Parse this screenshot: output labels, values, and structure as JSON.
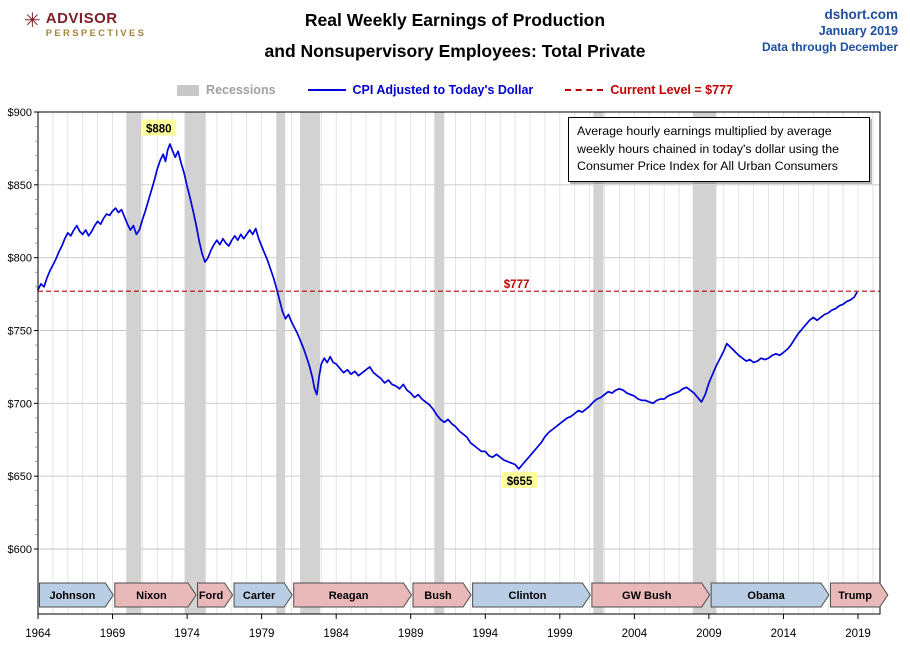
{
  "header": {
    "brand_top": "ADVISOR",
    "brand_bottom": "PERSPECTIVES",
    "title_line1": "Real Weekly Earnings of Production",
    "title_line2": "and Nonsupervisory Employees: Total Private",
    "source_site": "dshort.com",
    "source_date": "January 2019",
    "source_note": "Data through December"
  },
  "legend": {
    "recessions_label": "Recessions",
    "series_label": "CPI Adjusted to Today's Dollar",
    "current_label": "Current Level = $777"
  },
  "colors": {
    "line": "#0000dd",
    "current_level": "#c00000",
    "recession": "#d2d2d2",
    "dem": "#b9cde4",
    "rep": "#e9b9b9",
    "highlight_bg": "#ffff9e",
    "grid_major": "#c6c6c6",
    "grid_minor": "#dedede",
    "accent_blue": "#1c4e9e",
    "brand_red": "#7b2127",
    "brand_gold": "#a8833d"
  },
  "chart_data": {
    "type": "line",
    "title": "Real Weekly Earnings of Production and Nonsupervisory Employees: Total Private",
    "xlabel": "",
    "ylabel": "",
    "xlim": [
      1964,
      2020.5
    ],
    "ylim": [
      600,
      900
    ],
    "grid": true,
    "legend_position": "top",
    "x_ticks": [
      1964,
      1969,
      1974,
      1979,
      1984,
      1989,
      1994,
      1999,
      2004,
      2009,
      2014,
      2019
    ],
    "y_ticks": [
      600,
      650,
      700,
      750,
      800,
      850,
      900
    ],
    "y_tick_labels": [
      "$600",
      "$650",
      "$700",
      "$750",
      "$800",
      "$850",
      "$900"
    ],
    "current_level": 777,
    "note": "Average hourly earnings multiplied by average weekly hours chained in today's dollar using the Consumer Price Index for All Urban Consumers",
    "annotations": [
      {
        "text": "$880",
        "x": 1972.1,
        "y": 889,
        "style": "highlight"
      },
      {
        "text": "$655",
        "x": 1996.3,
        "y": 647,
        "style": "highlight"
      },
      {
        "text": "$777",
        "x": 1996.1,
        "y": 782,
        "style": "current"
      }
    ],
    "recessions": [
      [
        1969.92,
        1970.92
      ],
      [
        1973.83,
        1975.25
      ],
      [
        1980.0,
        1980.58
      ],
      [
        1981.58,
        1982.92
      ],
      [
        1990.58,
        1991.25
      ],
      [
        2001.25,
        2001.92
      ],
      [
        2007.92,
        2009.5
      ]
    ],
    "presidents": [
      {
        "name": "Johnson",
        "start": 1964.0,
        "end": 1969.05,
        "party": "D"
      },
      {
        "name": "Nixon",
        "start": 1969.05,
        "end": 1974.6,
        "party": "R"
      },
      {
        "name": "Ford",
        "start": 1974.6,
        "end": 1977.05,
        "party": "R"
      },
      {
        "name": "Carter",
        "start": 1977.05,
        "end": 1981.05,
        "party": "D"
      },
      {
        "name": "Reagan",
        "start": 1981.05,
        "end": 1989.05,
        "party": "R"
      },
      {
        "name": "Bush",
        "start": 1989.05,
        "end": 1993.05,
        "party": "R"
      },
      {
        "name": "Clinton",
        "start": 1993.05,
        "end": 2001.05,
        "party": "D"
      },
      {
        "name": "GW Bush",
        "start": 2001.05,
        "end": 2009.05,
        "party": "R"
      },
      {
        "name": "Obama",
        "start": 2009.05,
        "end": 2017.05,
        "party": "D"
      },
      {
        "name": "Trump",
        "start": 2017.05,
        "end": 2021.0,
        "party": "R"
      }
    ],
    "series": {
      "name": "CPI Adjusted to Today's Dollar",
      "points": [
        [
          1964,
          778
        ],
        [
          1964.2,
          782
        ],
        [
          1964.4,
          780
        ],
        [
          1964.6,
          786
        ],
        [
          1964.8,
          791
        ],
        [
          1965,
          795
        ],
        [
          1965.2,
          799
        ],
        [
          1965.4,
          804
        ],
        [
          1965.6,
          808
        ],
        [
          1965.8,
          813
        ],
        [
          1966,
          817
        ],
        [
          1966.2,
          815
        ],
        [
          1966.4,
          819
        ],
        [
          1966.6,
          822
        ],
        [
          1966.8,
          818
        ],
        [
          1967,
          816
        ],
        [
          1967.2,
          819
        ],
        [
          1967.4,
          815
        ],
        [
          1967.6,
          818
        ],
        [
          1967.8,
          822
        ],
        [
          1968,
          825
        ],
        [
          1968.2,
          823
        ],
        [
          1968.4,
          827
        ],
        [
          1968.6,
          830
        ],
        [
          1968.8,
          829
        ],
        [
          1969,
          832
        ],
        [
          1969.2,
          834
        ],
        [
          1969.4,
          831
        ],
        [
          1969.6,
          833
        ],
        [
          1969.8,
          828
        ],
        [
          1970,
          823
        ],
        [
          1970.2,
          819
        ],
        [
          1970.4,
          822
        ],
        [
          1970.6,
          816
        ],
        [
          1970.8,
          819
        ],
        [
          1971,
          826
        ],
        [
          1971.2,
          832
        ],
        [
          1971.4,
          839
        ],
        [
          1971.6,
          846
        ],
        [
          1971.8,
          853
        ],
        [
          1972,
          861
        ],
        [
          1972.2,
          867
        ],
        [
          1972.4,
          871
        ],
        [
          1972.55,
          866
        ],
        [
          1972.7,
          874
        ],
        [
          1972.85,
          878
        ],
        [
          1973,
          874
        ],
        [
          1973.2,
          869
        ],
        [
          1973.4,
          873
        ],
        [
          1973.6,
          865
        ],
        [
          1973.8,
          858
        ],
        [
          1974,
          849
        ],
        [
          1974.2,
          841
        ],
        [
          1974.4,
          832
        ],
        [
          1974.6,
          823
        ],
        [
          1974.8,
          812
        ],
        [
          1975,
          803
        ],
        [
          1975.2,
          797
        ],
        [
          1975.4,
          800
        ],
        [
          1975.6,
          805
        ],
        [
          1975.8,
          809
        ],
        [
          1976,
          812
        ],
        [
          1976.2,
          809
        ],
        [
          1976.4,
          813
        ],
        [
          1976.6,
          810
        ],
        [
          1976.8,
          808
        ],
        [
          1977,
          812
        ],
        [
          1977.2,
          815
        ],
        [
          1977.4,
          812
        ],
        [
          1977.6,
          816
        ],
        [
          1977.8,
          813
        ],
        [
          1978,
          816
        ],
        [
          1978.2,
          819
        ],
        [
          1978.4,
          816
        ],
        [
          1978.6,
          820
        ],
        [
          1978.8,
          813
        ],
        [
          1979,
          808
        ],
        [
          1979.2,
          803
        ],
        [
          1979.4,
          798
        ],
        [
          1979.6,
          792
        ],
        [
          1979.8,
          786
        ],
        [
          1980,
          779
        ],
        [
          1980.2,
          771
        ],
        [
          1980.4,
          763
        ],
        [
          1980.6,
          758
        ],
        [
          1980.8,
          761
        ],
        [
          1981,
          756
        ],
        [
          1981.2,
          752
        ],
        [
          1981.4,
          748
        ],
        [
          1981.6,
          743
        ],
        [
          1981.8,
          738
        ],
        [
          1982,
          732
        ],
        [
          1982.2,
          726
        ],
        [
          1982.4,
          718
        ],
        [
          1982.55,
          710
        ],
        [
          1982.7,
          706
        ],
        [
          1982.85,
          718
        ],
        [
          1983,
          727
        ],
        [
          1983.2,
          731
        ],
        [
          1983.4,
          728
        ],
        [
          1983.6,
          732
        ],
        [
          1983.8,
          728
        ],
        [
          1984,
          727
        ],
        [
          1984.25,
          724
        ],
        [
          1984.5,
          721
        ],
        [
          1984.75,
          723
        ],
        [
          1985,
          720
        ],
        [
          1985.25,
          722
        ],
        [
          1985.5,
          719
        ],
        [
          1985.75,
          721
        ],
        [
          1986,
          723
        ],
        [
          1986.25,
          725
        ],
        [
          1986.5,
          721
        ],
        [
          1986.75,
          719
        ],
        [
          1987,
          717
        ],
        [
          1987.25,
          714
        ],
        [
          1987.5,
          716
        ],
        [
          1987.75,
          713
        ],
        [
          1988,
          712
        ],
        [
          1988.25,
          710
        ],
        [
          1988.5,
          713
        ],
        [
          1988.75,
          709
        ],
        [
          1989,
          707
        ],
        [
          1989.25,
          704
        ],
        [
          1989.5,
          706
        ],
        [
          1989.75,
          703
        ],
        [
          1990,
          701
        ],
        [
          1990.25,
          699
        ],
        [
          1990.5,
          696
        ],
        [
          1990.75,
          692
        ],
        [
          1991,
          689
        ],
        [
          1991.25,
          687
        ],
        [
          1991.5,
          689
        ],
        [
          1991.75,
          686
        ],
        [
          1992,
          684
        ],
        [
          1992.25,
          681
        ],
        [
          1992.5,
          679
        ],
        [
          1992.75,
          677
        ],
        [
          1993,
          673
        ],
        [
          1993.25,
          671
        ],
        [
          1993.5,
          669
        ],
        [
          1993.75,
          667
        ],
        [
          1994,
          667
        ],
        [
          1994.25,
          664
        ],
        [
          1994.5,
          663
        ],
        [
          1994.75,
          665
        ],
        [
          1995,
          663
        ],
        [
          1995.25,
          661
        ],
        [
          1995.5,
          660
        ],
        [
          1995.75,
          659
        ],
        [
          1996,
          658
        ],
        [
          1996.25,
          655
        ],
        [
          1996.5,
          658
        ],
        [
          1996.75,
          661
        ],
        [
          1997,
          664
        ],
        [
          1997.25,
          667
        ],
        [
          1997.5,
          670
        ],
        [
          1997.75,
          673
        ],
        [
          1998,
          677
        ],
        [
          1998.25,
          680
        ],
        [
          1998.5,
          682
        ],
        [
          1998.75,
          684
        ],
        [
          1999,
          686
        ],
        [
          1999.25,
          688
        ],
        [
          1999.5,
          690
        ],
        [
          1999.75,
          691
        ],
        [
          2000,
          693
        ],
        [
          2000.25,
          695
        ],
        [
          2000.5,
          694
        ],
        [
          2000.75,
          696
        ],
        [
          2001,
          698
        ],
        [
          2001.25,
          701
        ],
        [
          2001.5,
          703
        ],
        [
          2001.75,
          704
        ],
        [
          2002,
          706
        ],
        [
          2002.25,
          708
        ],
        [
          2002.5,
          707
        ],
        [
          2002.75,
          709
        ],
        [
          2003,
          710
        ],
        [
          2003.25,
          709
        ],
        [
          2003.5,
          707
        ],
        [
          2003.75,
          706
        ],
        [
          2004,
          705
        ],
        [
          2004.25,
          703
        ],
        [
          2004.5,
          702
        ],
        [
          2004.75,
          702
        ],
        [
          2005,
          701
        ],
        [
          2005.25,
          700
        ],
        [
          2005.5,
          702
        ],
        [
          2005.75,
          703
        ],
        [
          2006,
          703
        ],
        [
          2006.25,
          705
        ],
        [
          2006.5,
          706
        ],
        [
          2006.75,
          707
        ],
        [
          2007,
          708
        ],
        [
          2007.25,
          710
        ],
        [
          2007.5,
          711
        ],
        [
          2007.75,
          709
        ],
        [
          2008,
          707
        ],
        [
          2008.25,
          704
        ],
        [
          2008.5,
          701
        ],
        [
          2008.75,
          706
        ],
        [
          2009,
          714
        ],
        [
          2009.25,
          720
        ],
        [
          2009.5,
          726
        ],
        [
          2009.75,
          731
        ],
        [
          2010,
          736
        ],
        [
          2010.2,
          741
        ],
        [
          2010.4,
          739
        ],
        [
          2010.6,
          737
        ],
        [
          2010.8,
          735
        ],
        [
          2011,
          733
        ],
        [
          2011.25,
          731
        ],
        [
          2011.5,
          729
        ],
        [
          2011.75,
          730
        ],
        [
          2012,
          728
        ],
        [
          2012.25,
          729
        ],
        [
          2012.5,
          731
        ],
        [
          2012.75,
          730
        ],
        [
          2013,
          731
        ],
        [
          2013.25,
          733
        ],
        [
          2013.5,
          734
        ],
        [
          2013.75,
          733
        ],
        [
          2014,
          735
        ],
        [
          2014.25,
          737
        ],
        [
          2014.5,
          740
        ],
        [
          2014.75,
          744
        ],
        [
          2015,
          748
        ],
        [
          2015.25,
          751
        ],
        [
          2015.5,
          754
        ],
        [
          2015.75,
          757
        ],
        [
          2016,
          759
        ],
        [
          2016.25,
          757
        ],
        [
          2016.5,
          759
        ],
        [
          2016.75,
          761
        ],
        [
          2017,
          762
        ],
        [
          2017.25,
          764
        ],
        [
          2017.5,
          765
        ],
        [
          2017.75,
          767
        ],
        [
          2018,
          768
        ],
        [
          2018.25,
          770
        ],
        [
          2018.5,
          771
        ],
        [
          2018.75,
          773
        ],
        [
          2018.92,
          776
        ]
      ]
    }
  }
}
